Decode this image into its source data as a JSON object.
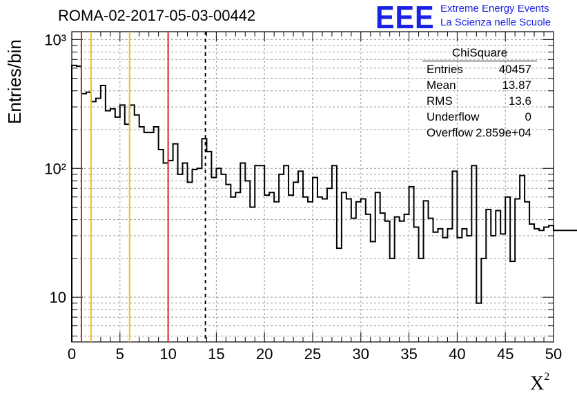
{
  "title": "ROMA-02-2017-05-03-00442",
  "logo": {
    "mark": "EEE",
    "line1": "Extreme Energy Events",
    "line2": "La Scienza nelle Scuole",
    "color": "#1a22e6"
  },
  "axes": {
    "ylabel": "Entries/bin",
    "xlabel_base": "X",
    "xlabel_sup": "2"
  },
  "stats": {
    "title": "ChiSquare",
    "rows": [
      {
        "key": "Entries",
        "value": "40457"
      },
      {
        "key": "Mean",
        "value": "13.87"
      },
      {
        "key": "RMS",
        "value": "13.6"
      },
      {
        "key": "Underflow",
        "value": "0"
      },
      {
        "key": "Overflow",
        "value": "2.859e+04"
      }
    ]
  },
  "colors": {
    "histogram": "#000000",
    "grid": "#9a9a9a",
    "red_line": "#e0201b",
    "yellow_line": "#f0c020"
  },
  "chart_data": {
    "type": "histogram",
    "x_range": [
      0,
      50
    ],
    "y_range": [
      4.5,
      1150
    ],
    "y_scale": "log",
    "x_ticks": [
      0,
      5,
      10,
      15,
      20,
      25,
      30,
      35,
      40,
      45,
      50
    ],
    "y_tick_labels": [
      {
        "value": 10,
        "label": "10"
      },
      {
        "value": 100,
        "label": "10²"
      },
      {
        "value": 1000,
        "label": "10³"
      }
    ],
    "grid": true,
    "bin_width": 0.5,
    "bin_start": 0,
    "values": [
      630,
      620,
      380,
      390,
      330,
      350,
      440,
      280,
      290,
      250,
      310,
      220,
      310,
      260,
      210,
      190,
      190,
      210,
      140,
      110,
      115,
      155,
      90,
      110,
      78,
      98,
      100,
      170,
      135,
      85,
      100,
      90,
      75,
      60,
      65,
      110,
      80,
      50,
      105,
      105,
      62,
      65,
      55,
      90,
      105,
      62,
      78,
      95,
      60,
      55,
      85,
      60,
      58,
      70,
      105,
      24,
      65,
      58,
      41,
      55,
      58,
      44,
      27,
      65,
      45,
      39,
      20,
      42,
      39,
      44,
      72,
      35,
      20,
      56,
      41,
      32,
      34,
      29,
      34,
      95,
      29,
      34,
      30,
      105,
      9,
      20,
      48,
      30,
      47,
      31,
      60,
      19,
      58,
      88,
      55,
      37,
      34,
      33,
      35,
      36,
      33,
      33,
      33,
      33,
      33,
      33,
      33,
      33,
      33,
      33
    ],
    "vertical_lines": [
      {
        "x": 1,
        "color": "red",
        "style": "solid"
      },
      {
        "x": 2,
        "color": "yellow",
        "style": "solid"
      },
      {
        "x": 6,
        "color": "yellow",
        "style": "solid"
      },
      {
        "x": 10,
        "color": "red",
        "style": "solid"
      },
      {
        "x": 13.87,
        "color": "black",
        "style": "dashed"
      }
    ]
  }
}
